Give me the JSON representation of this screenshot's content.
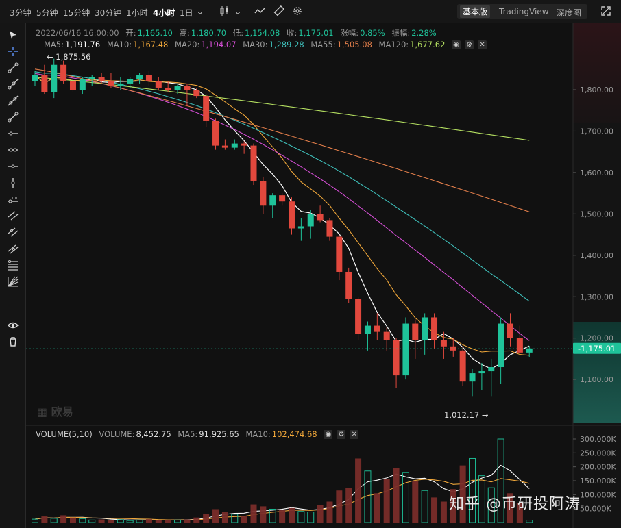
{
  "toolbar": {
    "intervals": [
      "3分钟",
      "5分钟",
      "15分钟",
      "30分钟",
      "1小时",
      "4小时",
      "1日"
    ],
    "active_interval": "4小时",
    "views": [
      "基本版",
      "TradingView",
      "深度图"
    ],
    "active_view": "基本版"
  },
  "ohlc": {
    "date": "2022/06/16 16:00:00",
    "open_label": "开:",
    "open": "1,165.10",
    "high_label": "高:",
    "high": "1,180.70",
    "low_label": "低:",
    "low": "1,154.08",
    "close_label": "收:",
    "close": "1,175.01",
    "change_label": "涨幅:",
    "change": "0.85%",
    "amp_label": "振幅:",
    "amp": "2.28%"
  },
  "ma_legend": [
    {
      "label": "MA5:",
      "value": "1,191.76",
      "color": "#ffffff"
    },
    {
      "label": "MA10:",
      "value": "1,167.48",
      "color": "#f0a73a"
    },
    {
      "label": "MA20:",
      "value": "1,194.07",
      "color": "#d54fd5"
    },
    {
      "label": "MA30:",
      "value": "1,289.28",
      "color": "#3fc0bb"
    },
    {
      "label": "MA55:",
      "value": "1,505.08",
      "color": "#e07d4a"
    },
    {
      "label": "MA120:",
      "value": "1,677.62",
      "color": "#b5e061"
    }
  ],
  "vol_legend": {
    "title": "VOLUME(5,10)",
    "vol_label": "VOLUME:",
    "vol": "8,452.75",
    "ma5_label": "MA5:",
    "ma5": "91,925.65",
    "ma10_label": "MA10:",
    "ma10": "102,474.68"
  },
  "colors": {
    "up": "#1fc39a",
    "down": "#e2483d",
    "bg": "#111111",
    "grid": "#222222"
  },
  "watermark": "知乎 @币研投阿涛",
  "logo": "欧易",
  "chart_data": {
    "type": "candlestick",
    "price_axis": {
      "ticks": [
        1100,
        1200,
        1300,
        1400,
        1500,
        1600,
        1700,
        1800
      ],
      "labels": [
        "1,100.00",
        "1,200.00",
        "1,300.00",
        "1,400.00",
        "1,500.00",
        "1,600.00",
        "1,700.00",
        "1,800.00"
      ]
    },
    "volume_axis": {
      "ticks": [
        50000,
        100000,
        150000,
        200000,
        250000,
        300000
      ],
      "labels": [
        "50.000K",
        "100.000K",
        "150.000K",
        "200.000K",
        "250.000K",
        "300.000K"
      ]
    },
    "last_price": "1,175.01",
    "max_label": "1,875.56",
    "min_label": "1,012.17",
    "candles": [
      [
        1820,
        1845,
        1810,
        1835
      ],
      [
        1835,
        1860,
        1790,
        1795
      ],
      [
        1795,
        1875,
        1780,
        1860
      ],
      [
        1860,
        1870,
        1815,
        1820
      ],
      [
        1820,
        1830,
        1795,
        1800
      ],
      [
        1800,
        1830,
        1790,
        1825
      ],
      [
        1825,
        1835,
        1810,
        1830
      ],
      [
        1830,
        1840,
        1815,
        1820
      ],
      [
        1820,
        1840,
        1805,
        1810
      ],
      [
        1810,
        1830,
        1800,
        1815
      ],
      [
        1815,
        1830,
        1805,
        1825
      ],
      [
        1825,
        1840,
        1815,
        1835
      ],
      [
        1835,
        1845,
        1810,
        1820
      ],
      [
        1820,
        1830,
        1800,
        1805
      ],
      [
        1805,
        1820,
        1795,
        1800
      ],
      [
        1800,
        1815,
        1790,
        1810
      ],
      [
        1810,
        1815,
        1760,
        1800
      ],
      [
        1800,
        1805,
        1780,
        1785
      ],
      [
        1785,
        1790,
        1710,
        1725
      ],
      [
        1725,
        1730,
        1655,
        1665
      ],
      [
        1665,
        1680,
        1655,
        1660
      ],
      [
        1660,
        1680,
        1655,
        1670
      ],
      [
        1670,
        1675,
        1645,
        1665
      ],
      [
        1665,
        1670,
        1570,
        1580
      ],
      [
        1580,
        1590,
        1500,
        1520
      ],
      [
        1520,
        1550,
        1490,
        1545
      ],
      [
        1545,
        1550,
        1520,
        1530
      ],
      [
        1530,
        1540,
        1450,
        1465
      ],
      [
        1465,
        1490,
        1435,
        1470
      ],
      [
        1470,
        1510,
        1440,
        1500
      ],
      [
        1500,
        1520,
        1480,
        1485
      ],
      [
        1485,
        1490,
        1435,
        1445
      ],
      [
        1445,
        1450,
        1340,
        1360
      ],
      [
        1360,
        1370,
        1285,
        1295
      ],
      [
        1295,
        1300,
        1195,
        1210
      ],
      [
        1210,
        1240,
        1170,
        1230
      ],
      [
        1230,
        1260,
        1195,
        1215
      ],
      [
        1215,
        1225,
        1170,
        1195
      ],
      [
        1195,
        1200,
        1080,
        1110
      ],
      [
        1110,
        1250,
        1100,
        1235
      ],
      [
        1235,
        1245,
        1150,
        1195
      ],
      [
        1195,
        1260,
        1160,
        1250
      ],
      [
        1250,
        1260,
        1175,
        1195
      ],
      [
        1195,
        1215,
        1150,
        1180
      ],
      [
        1180,
        1200,
        1155,
        1170
      ],
      [
        1170,
        1180,
        1085,
        1095
      ],
      [
        1095,
        1125,
        1060,
        1115
      ],
      [
        1115,
        1140,
        1075,
        1120
      ],
      [
        1120,
        1150,
        1060,
        1130
      ],
      [
        1130,
        1250,
        1090,
        1235
      ],
      [
        1235,
        1260,
        1180,
        1200
      ],
      [
        1200,
        1230,
        1165,
        1165
      ],
      [
        1165,
        1181,
        1154,
        1175
      ]
    ],
    "volumes": [
      12000,
      22000,
      15000,
      26000,
      18000,
      14000,
      9000,
      11000,
      8000,
      10000,
      7000,
      9000,
      12000,
      8000,
      10000,
      9000,
      11000,
      18000,
      32000,
      48000,
      37000,
      30000,
      22000,
      65000,
      58000,
      48000,
      45000,
      52000,
      40000,
      38000,
      62000,
      75000,
      115000,
      125000,
      230000,
      185000,
      105000,
      155000,
      195000,
      180000,
      150000,
      115000,
      90000,
      75000,
      120000,
      205000,
      230000,
      168000,
      125000,
      300000,
      105000,
      70000,
      8452
    ],
    "ma_end_values": {
      "MA5": 1191.76,
      "MA10": 1167.48,
      "MA20": 1194.07,
      "MA30": 1289.28,
      "MA55": 1505.08,
      "MA120": 1677.62
    }
  }
}
